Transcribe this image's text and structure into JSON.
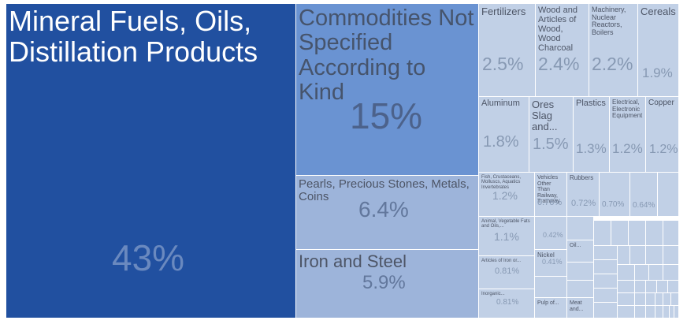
{
  "colors": {
    "dark": "#2150a0",
    "mid": "#6a93d2",
    "light": "#9db4da",
    "pale": "#c1d0e6",
    "dark_text": "#6a89bf",
    "mid_text": "#4c628b",
    "light_text": "#62779c",
    "pale_text": "#8799b3"
  },
  "chart_data": {
    "type": "treemap",
    "unit": "%",
    "items": [
      {
        "label": "Mineral Fuels, Oils, Distillation Products",
        "share": "43%",
        "value": 43
      },
      {
        "label": "Commodities Not Specified According to Kind",
        "share": "15%",
        "value": 15
      },
      {
        "label": "Pearls, Precious Stones, Metals, Coins",
        "share": "6.4%",
        "value": 6.4
      },
      {
        "label": "Iron and Steel",
        "share": "5.9%",
        "value": 5.9
      },
      {
        "label": "Fertilizers",
        "share": "2.5%",
        "value": 2.5
      },
      {
        "label": "Wood and Articles of Wood, Wood Charcoal",
        "share": "2.4%",
        "value": 2.4
      },
      {
        "label": "Machinery, Nuclear Reactors, Boilers",
        "share": "2.2%",
        "value": 2.2
      },
      {
        "label": "Cereals",
        "share": "1.9%",
        "value": 1.9
      },
      {
        "label": "Aluminum",
        "share": "1.8%",
        "value": 1.8
      },
      {
        "label": "Ores Slag and...",
        "share": "1.5%",
        "value": 1.5
      },
      {
        "label": "Plastics",
        "share": "1.3%",
        "value": 1.3
      },
      {
        "label": "Electrical, Electronic Equipment",
        "share": "1.2%",
        "value": 1.2
      },
      {
        "label": "Copper",
        "share": "1.2%",
        "value": 1.2
      },
      {
        "label": "Fish, Crustaceans, Molluscs, Aquatics Invertebrates",
        "share": "1.2%",
        "value": 1.2
      },
      {
        "label": "Vehicles Other Than Railway, Tramway",
        "share": "0.76%",
        "value": 0.76
      },
      {
        "label": "Rubbers",
        "share": "0.72%",
        "value": 0.72
      },
      {
        "label": "",
        "share": "0.70%",
        "value": 0.7
      },
      {
        "label": "",
        "share": "0.64%",
        "value": 0.64
      },
      {
        "label": "Animal, Vegetable Fats and Oils,...",
        "share": "1.1%",
        "value": 1.1
      },
      {
        "label": "Articles of Iron or...",
        "share": "0.81%",
        "value": 0.81
      },
      {
        "label": "Inorganic...",
        "share": "0.81%",
        "value": 0.81
      },
      {
        "label": "",
        "share": "0.42%",
        "value": 0.42
      },
      {
        "label": "Nickel",
        "share": "0.41%",
        "value": 0.41
      },
      {
        "label": "Oil...",
        "share": "",
        "value": null
      },
      {
        "label": "Pulp of...",
        "share": "",
        "value": null
      },
      {
        "label": "Meat and...",
        "share": "",
        "value": null
      }
    ]
  }
}
